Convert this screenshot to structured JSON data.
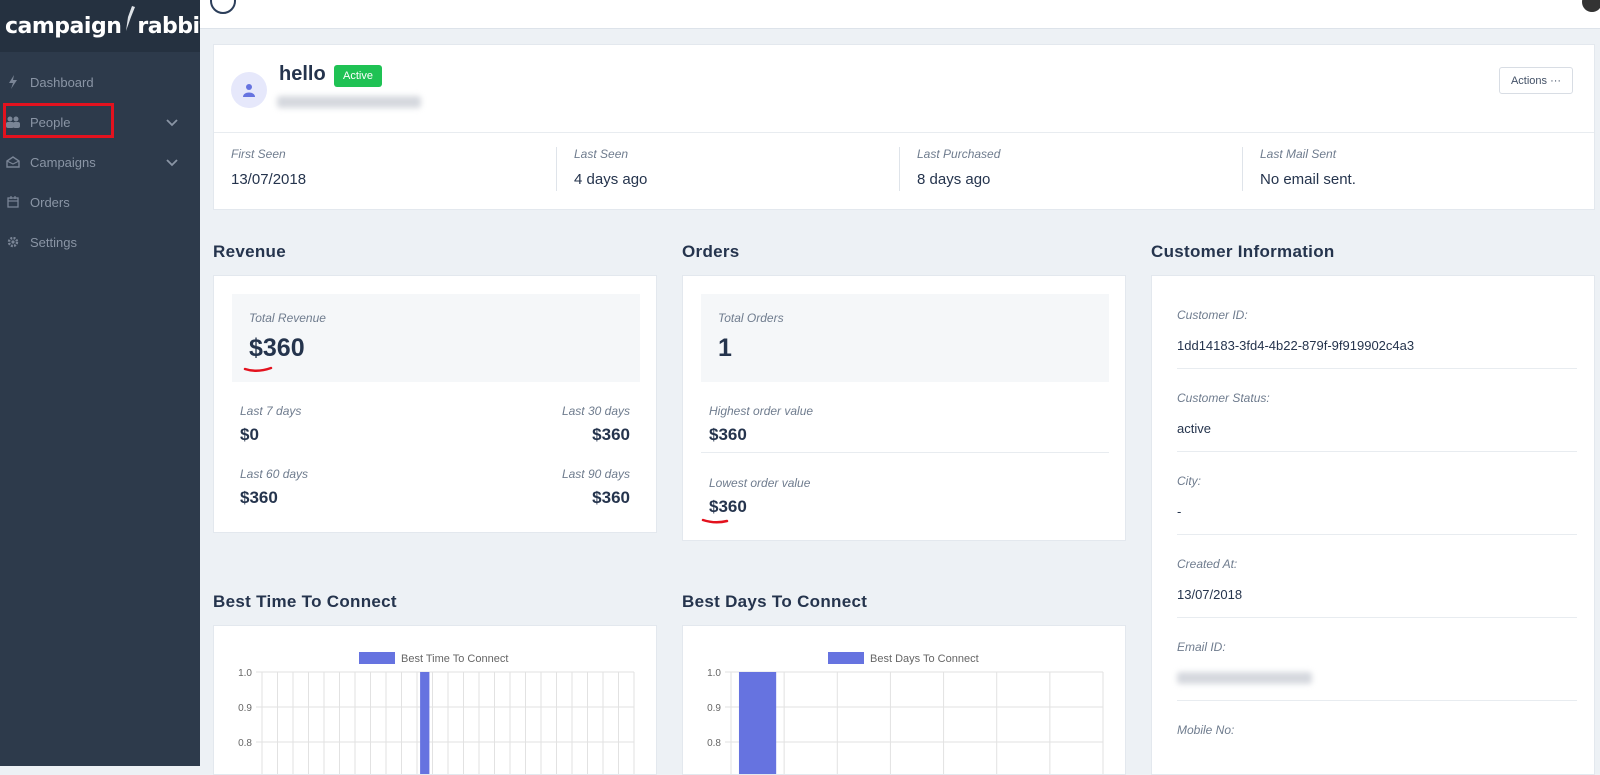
{
  "brand": {
    "name_left": "campaign",
    "name_right": "rabbit"
  },
  "nav": {
    "items": [
      {
        "label": "Dashboard",
        "icon": "bolt-icon"
      },
      {
        "label": "People",
        "icon": "people-icon"
      },
      {
        "label": "Campaigns",
        "icon": "envelope-icon"
      },
      {
        "label": "Orders",
        "icon": "calendar-icon"
      },
      {
        "label": "Settings",
        "icon": "gear-icon"
      }
    ]
  },
  "profile": {
    "name": "hello",
    "status_badge": "Active",
    "actions_label": "Actions ···",
    "stats": [
      {
        "label": "First Seen",
        "value": "13/07/2018"
      },
      {
        "label": "Last Seen",
        "value": "4 days ago"
      },
      {
        "label": "Last Purchased",
        "value": "8 days ago"
      },
      {
        "label": "Last Mail Sent",
        "value": "No email sent."
      }
    ]
  },
  "revenue": {
    "title": "Revenue",
    "total_label": "Total Revenue",
    "total_value": "$360",
    "last7_label": "Last 7 days",
    "last7_value": "$0",
    "last30_label": "Last 30 days",
    "last30_value": "$360",
    "last60_label": "Last 60 days",
    "last60_value": "$360",
    "last90_label": "Last 90 days",
    "last90_value": "$360"
  },
  "orders": {
    "title": "Orders",
    "total_label": "Total Orders",
    "total_value": "1",
    "highest_label": "Highest order value",
    "highest_value": "$360",
    "lowest_label": "Lowest order value",
    "lowest_value": "$360"
  },
  "customer": {
    "title": "Customer Information",
    "fields": [
      {
        "label": "Customer ID:",
        "value": "1dd14183-3fd4-4b22-879f-9f919902c4a3"
      },
      {
        "label": "Customer Status:",
        "value": "active"
      },
      {
        "label": "City:",
        "value": "-"
      },
      {
        "label": "Created At:",
        "value": "13/07/2018"
      },
      {
        "label": "Email ID:",
        "value": ""
      },
      {
        "label": "Mobile No:",
        "value": ""
      }
    ]
  },
  "best_time": {
    "title": "Best Time To Connect"
  },
  "best_days": {
    "title": "Best Days To Connect"
  },
  "colors": {
    "bar": "#6673e0",
    "badge": "#1fc254",
    "sidebar": "#2d3a4b",
    "annotation": "#e3121e"
  },
  "chart_data": [
    {
      "type": "bar",
      "legend": [
        "Best Time To Connect"
      ],
      "series": [
        {
          "name": "Best Time To Connect",
          "bar_index": 10,
          "value": 1.0
        }
      ],
      "bar_count": 24,
      "ylim": [
        0.8,
        1.0
      ],
      "y_ticks": [
        "1.0",
        "0.9",
        "0.8"
      ],
      "grid": true
    },
    {
      "type": "bar",
      "legend": [
        "Best Days To Connect"
      ],
      "series": [
        {
          "name": "Best Days To Connect",
          "bar_index": 0,
          "value": 1.0
        }
      ],
      "bar_count": 7,
      "ylim": [
        0.8,
        1.0
      ],
      "y_ticks": [
        "1.0",
        "0.9",
        "0.8"
      ],
      "grid": true
    }
  ]
}
